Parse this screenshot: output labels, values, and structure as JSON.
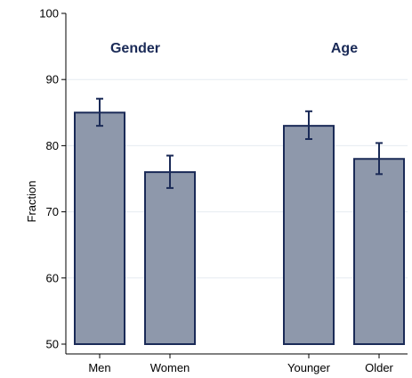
{
  "chart_data": {
    "type": "bar",
    "ylabel": "Fraction",
    "ylim": [
      50,
      100
    ],
    "yticks": [
      50,
      60,
      70,
      80,
      90,
      100
    ],
    "grid": true,
    "colors": {
      "bar_fill": "#8e98ab",
      "bar_stroke": "#1a2a57",
      "error_bar": "#1a2a57",
      "group_label": "#1a2a57",
      "grid": "#e6ebf1"
    },
    "groups": [
      {
        "label": "Gender",
        "categories": [
          "Men",
          "Women"
        ],
        "values": [
          85,
          76
        ],
        "error_low": [
          83,
          73.6
        ],
        "error_high": [
          87.1,
          78.5
        ]
      },
      {
        "label": "Age",
        "categories": [
          "Younger",
          "Older"
        ],
        "values": [
          83,
          78
        ],
        "error_low": [
          81,
          75.7
        ],
        "error_high": [
          85.2,
          80.4
        ]
      }
    ]
  }
}
